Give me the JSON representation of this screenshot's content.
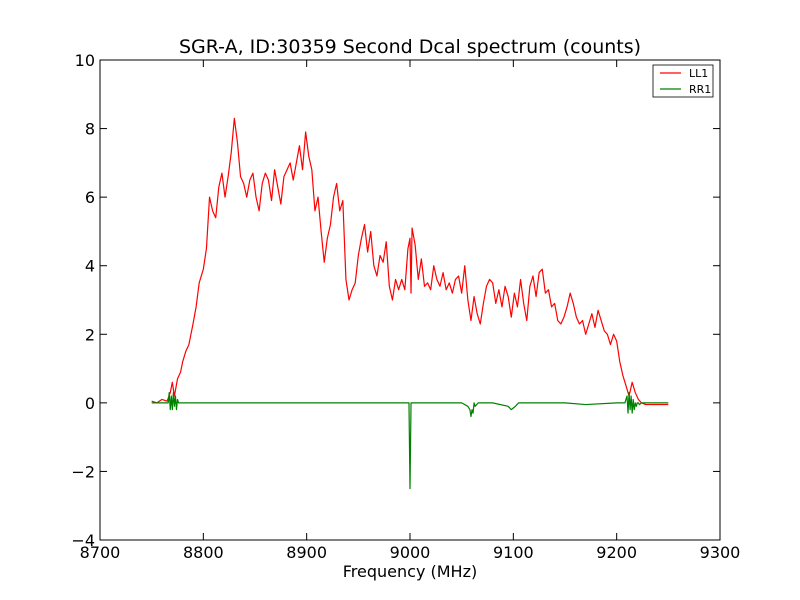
{
  "chart_data": {
    "type": "line",
    "title": "SGR-A, ID:30359 Second Dcal spectrum (counts)",
    "xlabel": "Frequency (MHz)",
    "ylabel": "",
    "xlim": [
      8700,
      9300
    ],
    "ylim": [
      -4,
      10
    ],
    "x_ticks": [
      8700,
      8800,
      8900,
      9000,
      9100,
      9200,
      9300
    ],
    "y_ticks": [
      -4,
      -2,
      0,
      2,
      4,
      6,
      8,
      10
    ],
    "x_tick_labels": [
      "8700",
      "8800",
      "8900",
      "9000",
      "9100",
      "9200",
      "9300"
    ],
    "y_tick_labels": [
      "−4",
      "−2",
      "0",
      "2",
      "4",
      "6",
      "8",
      "10"
    ],
    "grid": false,
    "legend_position": "top-right",
    "series": [
      {
        "name": "LL1",
        "color": "#ff0000",
        "x": [
          8750,
          8755,
          8760,
          8765,
          8768,
          8770,
          8772,
          8775,
          8778,
          8780,
          8783,
          8786,
          8790,
          8793,
          8796,
          8800,
          8803,
          8806,
          8809,
          8812,
          8815,
          8818,
          8821,
          8824,
          8827,
          8830,
          8833,
          8836,
          8839,
          8842,
          8845,
          8848,
          8851,
          8854,
          8857,
          8860,
          8863,
          8866,
          8869,
          8872,
          8875,
          8878,
          8881,
          8884,
          8887,
          8890,
          8893,
          8896,
          8899,
          8902,
          8905,
          8908,
          8911,
          8914,
          8917,
          8920,
          8923,
          8926,
          8929,
          8932,
          8935,
          8938,
          8941,
          8944,
          8947,
          8950,
          8953,
          8956,
          8959,
          8962,
          8965,
          8968,
          8971,
          8974,
          8977,
          8980,
          8983,
          8986,
          8989,
          8992,
          8995,
          8998,
          9000,
          9001,
          9002,
          9005,
          9008,
          9011,
          9014,
          9017,
          9020,
          9023,
          9026,
          9029,
          9032,
          9035,
          9038,
          9041,
          9044,
          9047,
          9050,
          9053,
          9056,
          9059,
          9062,
          9065,
          9068,
          9071,
          9074,
          9077,
          9080,
          9083,
          9086,
          9089,
          9092,
          9095,
          9098,
          9101,
          9104,
          9107,
          9110,
          9113,
          9116,
          9119,
          9122,
          9125,
          9128,
          9131,
          9134,
          9137,
          9140,
          9143,
          9146,
          9149,
          9152,
          9155,
          9158,
          9161,
          9164,
          9167,
          9170,
          9173,
          9176,
          9179,
          9182,
          9185,
          9188,
          9191,
          9194,
          9197,
          9200,
          9203,
          9206,
          9209,
          9212,
          9215,
          9218,
          9221,
          9224,
          9228,
          9235,
          9242,
          9250
        ],
        "y": [
          0.05,
          0.0,
          0.1,
          0.05,
          0.3,
          0.6,
          0.2,
          0.7,
          0.9,
          1.2,
          1.5,
          1.7,
          2.3,
          2.8,
          3.5,
          3.9,
          4.5,
          6.0,
          5.6,
          5.4,
          6.3,
          6.7,
          6.0,
          6.6,
          7.3,
          8.3,
          7.6,
          6.6,
          6.4,
          6.0,
          6.5,
          6.7,
          6.0,
          5.6,
          6.4,
          6.7,
          6.5,
          5.9,
          6.8,
          6.3,
          5.8,
          6.6,
          6.8,
          7.0,
          6.5,
          7.0,
          7.5,
          6.8,
          7.9,
          7.2,
          6.8,
          5.6,
          6.0,
          5.0,
          4.1,
          4.8,
          5.2,
          6.0,
          6.4,
          5.6,
          5.9,
          3.6,
          3.0,
          3.3,
          3.5,
          4.3,
          4.8,
          5.2,
          4.4,
          5.0,
          4.0,
          3.7,
          4.3,
          4.1,
          4.7,
          3.4,
          3.0,
          3.6,
          3.3,
          3.6,
          3.3,
          4.5,
          4.8,
          3.2,
          5.1,
          4.6,
          3.6,
          4.2,
          3.4,
          3.5,
          3.3,
          4.0,
          3.6,
          3.4,
          3.8,
          3.3,
          3.5,
          3.2,
          3.6,
          3.7,
          3.2,
          4.0,
          3.0,
          2.4,
          3.1,
          2.6,
          2.3,
          2.9,
          3.4,
          3.6,
          3.5,
          2.9,
          3.3,
          2.8,
          3.4,
          3.1,
          2.5,
          3.2,
          2.8,
          3.6,
          2.9,
          2.4,
          3.4,
          3.7,
          3.1,
          3.8,
          3.9,
          3.2,
          3.3,
          2.8,
          2.9,
          2.4,
          2.3,
          2.5,
          2.8,
          3.2,
          2.9,
          2.5,
          2.3,
          2.4,
          2.0,
          2.3,
          2.6,
          2.2,
          2.7,
          2.4,
          2.1,
          2.0,
          1.7,
          2.0,
          1.8,
          1.2,
          0.8,
          0.5,
          0.2,
          0.6,
          0.3,
          0.1,
          0.0,
          -0.05,
          -0.05,
          -0.05,
          -0.05
        ]
      },
      {
        "name": "RR1",
        "color": "#008000",
        "x": [
          8750,
          8760,
          8766,
          8767,
          8768,
          8769,
          8770,
          8771,
          8772,
          8773,
          8774,
          8775,
          8776,
          8780,
          8800,
          8850,
          8900,
          8950,
          8999,
          9000,
          9001,
          9002,
          9020,
          9050,
          9056,
          9058,
          9059,
          9060,
          9061,
          9062,
          9063,
          9066,
          9080,
          9095,
          9098,
          9100,
          9102,
          9105,
          9150,
          9170,
          9200,
          9208,
          9210,
          9211,
          9212,
          9213,
          9214,
          9215,
          9216,
          9217,
          9218,
          9219,
          9220,
          9221,
          9222,
          9224,
          9230,
          9250
        ],
        "y": [
          0.0,
          0.0,
          0.0,
          0.3,
          -0.2,
          0.2,
          -0.2,
          0.3,
          -0.1,
          0.2,
          -0.2,
          0.1,
          0.0,
          0.0,
          0.0,
          0.0,
          0.0,
          0.0,
          0.0,
          -2.5,
          0.0,
          0.0,
          0.0,
          0.0,
          -0.1,
          -0.2,
          -0.4,
          -0.2,
          -0.3,
          0.0,
          -0.1,
          0.0,
          0.0,
          -0.1,
          -0.2,
          -0.15,
          -0.1,
          0.0,
          0.0,
          -0.05,
          0.0,
          0.0,
          0.2,
          -0.3,
          0.3,
          -0.2,
          0.2,
          -0.3,
          0.1,
          -0.2,
          0.0,
          -0.1,
          0.0,
          0.0,
          -0.05,
          0.0,
          0.0,
          0.0
        ]
      }
    ]
  }
}
